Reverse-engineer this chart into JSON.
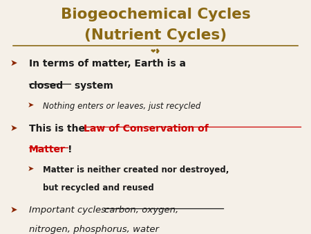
{
  "title_line1": "Biogeochemical Cycles",
  "title_line2": "(Nutrient Cycles)",
  "title_color": "#8B6914",
  "background_color": "#F5F0E8",
  "bullet_color": "#8B2500",
  "text_color": "#1a1a1a",
  "red_color": "#CC0000",
  "bullet1_line1": "In terms of matter, Earth is a",
  "bullet1_line2_u": "closed",
  "bullet1_line2_r": " system",
  "bullet1_sub": "Nothing enters or leaves, just recycled",
  "bullet2_pre": "This is the ",
  "bullet2_red": "Law of Conservation of",
  "bullet2_red2": "Matter",
  "bullet2_end": "!",
  "bullet2_sub1": "Matter is neither created nor destroyed,",
  "bullet2_sub2": "but recycled and reused",
  "bullet3_pre": "Important cycles: ",
  "bullet3_u1": "carbon, oxygen,",
  "bullet3_u2": "nitrogen, phosphorus, water",
  "figsize": [
    4.5,
    3.38
  ],
  "dpi": 100
}
